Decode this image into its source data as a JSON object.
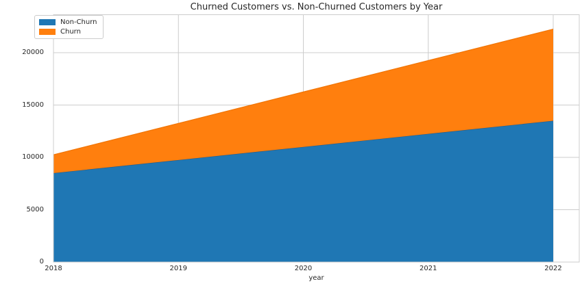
{
  "chart_data": {
    "type": "area",
    "stacked": true,
    "title": "Churned Customers vs. Non-Churned Customers by Year",
    "xlabel": "year",
    "ylabel": "",
    "x": [
      2018,
      2019,
      2020,
      2021,
      2022
    ],
    "series": [
      {
        "name": "Non-Churn",
        "color": "#1f77b4",
        "edge_color": "#30587a",
        "values": [
          8500,
          9750,
          11000,
          12250,
          13500
        ]
      },
      {
        "name": "Churn",
        "color": "#ff7f0e",
        "edge_color": "#f07405",
        "values": [
          1750,
          3500,
          5250,
          7000,
          8750
        ]
      }
    ],
    "stacked_totals": [
      10250,
      13250,
      16250,
      19250,
      22250
    ],
    "y_ticks": [
      0,
      5000,
      10000,
      15000,
      20000
    ],
    "x_tick_labels": [
      "2018",
      "2019",
      "2020",
      "2021",
      "2022"
    ],
    "ylim": [
      0,
      23600
    ],
    "xlim": [
      2018,
      2022.21
    ],
    "grid": true,
    "grid_color": "#cccccc",
    "text_color": "#262626",
    "legend_position": "upper-left",
    "legend": [
      "Non-Churn",
      "Churn"
    ]
  }
}
